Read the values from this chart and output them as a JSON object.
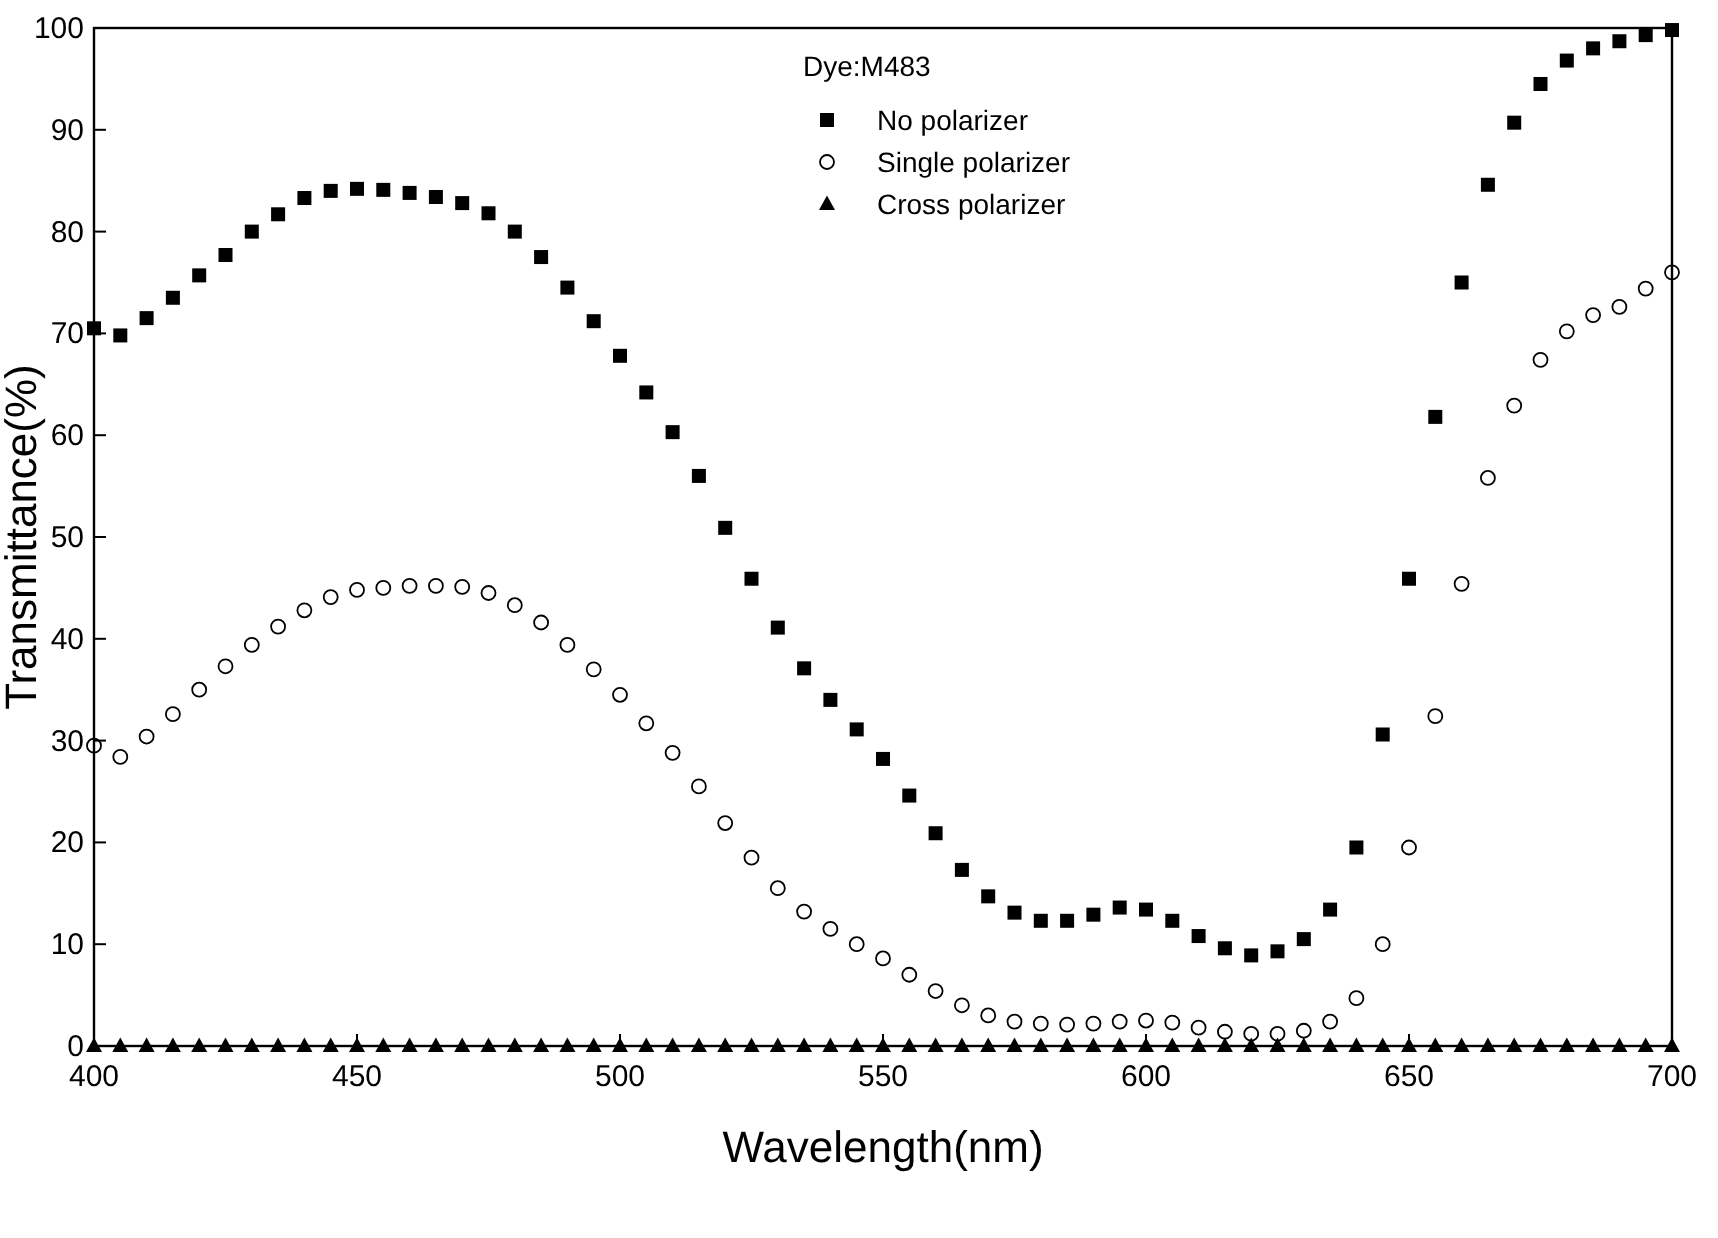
{
  "chart_data": {
    "type": "scatter",
    "xlabel": "Wavelength(nm)",
    "ylabel": "Transmittance(%)",
    "legend_title": "Dye:M483",
    "legend": "top",
    "xlim": [
      400,
      700
    ],
    "ylim": [
      0,
      100
    ],
    "xticks": [
      400,
      450,
      500,
      550,
      600,
      650,
      700
    ],
    "yticks": [
      0,
      10,
      20,
      30,
      40,
      50,
      60,
      70,
      80,
      90,
      100
    ],
    "x": [
      400,
      405,
      410,
      415,
      420,
      425,
      430,
      435,
      440,
      445,
      450,
      455,
      460,
      465,
      470,
      475,
      480,
      485,
      490,
      495,
      500,
      505,
      510,
      515,
      520,
      525,
      530,
      535,
      540,
      545,
      550,
      555,
      560,
      565,
      570,
      575,
      580,
      585,
      590,
      595,
      600,
      605,
      610,
      615,
      620,
      625,
      630,
      635,
      640,
      645,
      650,
      655,
      660,
      665,
      670,
      675,
      680,
      685,
      690,
      695,
      700
    ],
    "series": [
      {
        "name": "No polarizer",
        "color": "#000000",
        "marker": "square",
        "values": [
          70.5,
          69.8,
          71.5,
          73.5,
          75.7,
          77.7,
          80,
          81.7,
          83.3,
          84,
          84.2,
          84.1,
          83.8,
          83.4,
          82.8,
          81.8,
          80,
          77.5,
          74.5,
          71.2,
          67.8,
          64.2,
          60.3,
          56,
          50.9,
          45.9,
          41.1,
          37.1,
          34,
          31.1,
          28.2,
          24.6,
          20.9,
          17.3,
          14.7,
          13.1,
          12.3,
          12.3,
          12.9,
          13.6,
          13.4,
          12.3,
          10.8,
          9.6,
          8.9,
          9.3,
          10.5,
          13.4,
          19.5,
          30.6,
          45.9,
          61.8,
          75,
          84.6,
          90.7,
          94.5,
          96.8,
          98,
          98.7,
          99.3,
          99.8
        ]
      },
      {
        "name": "Single polarizer",
        "color": "#000000",
        "marker": "circle",
        "values": [
          29.5,
          28.4,
          30.4,
          32.6,
          35,
          37.3,
          39.4,
          41.2,
          42.8,
          44.1,
          44.8,
          45,
          45.2,
          45.2,
          45.1,
          44.5,
          43.3,
          41.6,
          39.4,
          37,
          34.5,
          31.7,
          28.8,
          25.5,
          21.9,
          18.5,
          15.5,
          13.2,
          11.5,
          10,
          8.6,
          7,
          5.4,
          4,
          3,
          2.4,
          2.2,
          2.1,
          2.2,
          2.4,
          2.5,
          2.3,
          1.8,
          1.4,
          1.2,
          1.2,
          1.5,
          2.4,
          4.7,
          10,
          19.5,
          32.4,
          45.4,
          55.8,
          62.9,
          67.4,
          70.2,
          71.8,
          72.6,
          74.4,
          76
        ]
      },
      {
        "name": "Cross polarizer",
        "color": "#000000",
        "marker": "triangle",
        "values": [
          0,
          0,
          0,
          0,
          0,
          0,
          0,
          0,
          0,
          0,
          0,
          0,
          0,
          0,
          0,
          0,
          0,
          0,
          0,
          0,
          0,
          0,
          0,
          0,
          0,
          0,
          0,
          0,
          0,
          0,
          0,
          0,
          0,
          0,
          0,
          0,
          0,
          0,
          0,
          0,
          0,
          0,
          0,
          0,
          0,
          0,
          0,
          0,
          0,
          0,
          0,
          0,
          0,
          0,
          0,
          0,
          0,
          0,
          0,
          0,
          0
        ]
      }
    ]
  }
}
